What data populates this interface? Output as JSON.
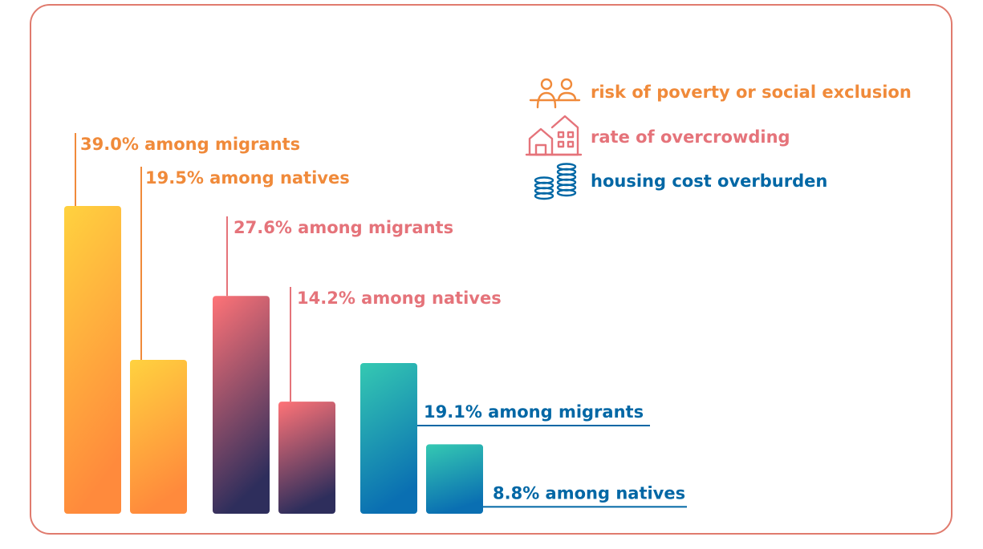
{
  "chart_data": {
    "type": "bar",
    "series": [
      {
        "key": "poverty",
        "legend": "risk of poverty or social exclusion",
        "icon": "people-icon",
        "color": "#f08a3a",
        "values": [
          {
            "value": 39.0,
            "label": "39.0% among migrants"
          },
          {
            "value": 19.5,
            "label": "19.5% among natives"
          }
        ],
        "gradient": [
          "#ffd23f",
          "#ff8a3c"
        ]
      },
      {
        "key": "overcrowding",
        "legend": "rate of overcrowding",
        "icon": "house-icon",
        "color": "#e5737a",
        "values": [
          {
            "value": 27.6,
            "label": "27.6% among migrants"
          },
          {
            "value": 14.2,
            "label": "14.2% among natives"
          }
        ],
        "gradient": [
          "#ff7377",
          "#2e2e5c"
        ]
      },
      {
        "key": "housing",
        "legend": "housing cost overburden",
        "icon": "coins-icon",
        "color": "#0067a5",
        "values": [
          {
            "value": 19.1,
            "label": "19.1% among migrants"
          },
          {
            "value": 8.8,
            "label": "8.8% among natives"
          }
        ],
        "gradient": [
          "#35c9b2",
          "#0a6fb2"
        ]
      }
    ],
    "colors": {
      "border": "#e07b6e"
    },
    "legend_position": "top-right",
    "grid": false
  }
}
